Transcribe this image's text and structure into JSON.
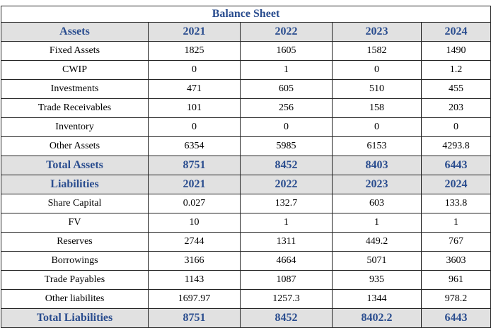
{
  "title": "Balance Sheet",
  "years": [
    "2021",
    "2022",
    "2023",
    "2024"
  ],
  "assets": {
    "header": "Assets",
    "rows": [
      {
        "label": "Fixed Assets",
        "values": [
          "1825",
          "1605",
          "1582",
          "1490"
        ]
      },
      {
        "label": "CWIP",
        "values": [
          "0",
          "1",
          "0",
          "1.2"
        ]
      },
      {
        "label": "Investments",
        "values": [
          "471",
          "605",
          "510",
          "455"
        ]
      },
      {
        "label": "Trade Receivables",
        "values": [
          "101",
          "256",
          "158",
          "203"
        ]
      },
      {
        "label": "Inventory",
        "values": [
          "0",
          "0",
          "0",
          "0"
        ]
      },
      {
        "label": "Other Assets",
        "values": [
          "6354",
          "5985",
          "6153",
          "4293.8"
        ]
      }
    ],
    "total": {
      "label": "Total Assets",
      "values": [
        "8751",
        "8452",
        "8403",
        "6443"
      ]
    }
  },
  "liabilities": {
    "header": "Liabilities",
    "rows": [
      {
        "label": "Share Capital",
        "values": [
          "0.027",
          "132.7",
          "603",
          "133.8"
        ]
      },
      {
        "label": "FV",
        "values": [
          "10",
          "1",
          "1",
          "1"
        ]
      },
      {
        "label": "Reserves",
        "values": [
          "2744",
          "1311",
          "449.2",
          "767"
        ]
      },
      {
        "label": "Borrowings",
        "values": [
          "3166",
          "4664",
          "5071",
          "3603"
        ]
      },
      {
        "label": "Trade Payables",
        "values": [
          "1143",
          "1087",
          "935",
          "961"
        ]
      },
      {
        "label": "Other liabilites",
        "values": [
          "1697.97",
          "1257.3",
          "1344",
          "978.2"
        ]
      }
    ],
    "total": {
      "label": "Total Liabilities",
      "values": [
        "8751",
        "8452",
        "8402.2",
        "6443"
      ]
    }
  },
  "colors": {
    "header_text": "#2a4d8f",
    "header_bg": "#e1e1e1",
    "border": "#222222"
  }
}
